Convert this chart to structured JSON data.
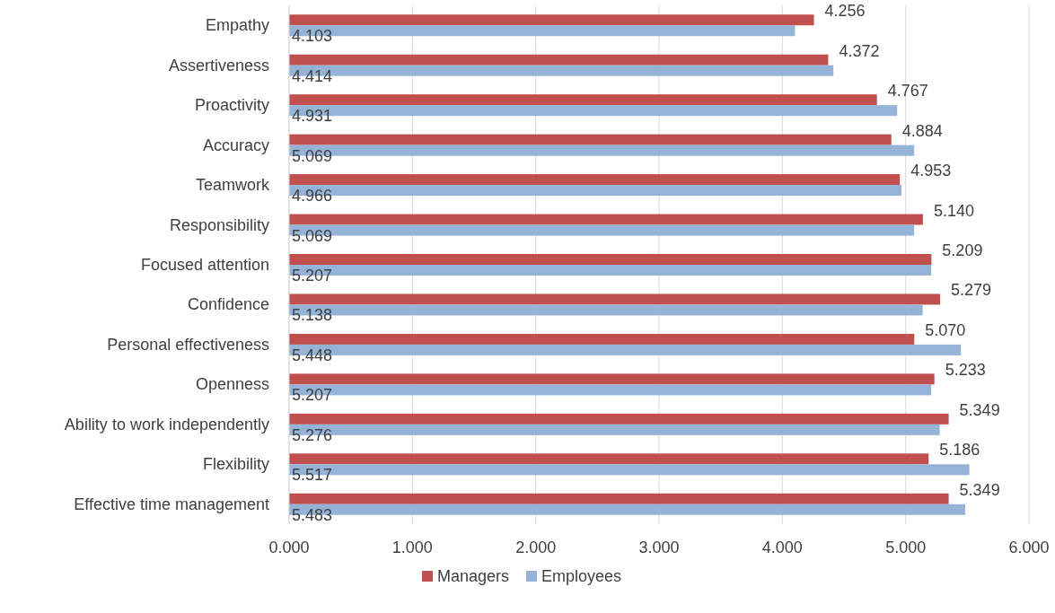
{
  "chart_data": {
    "type": "bar",
    "orientation": "horizontal",
    "categories": [
      "Empathy",
      "Assertiveness",
      "Proactivity",
      "Accuracy",
      "Teamwork",
      "Responsibility",
      "Focused attention",
      "Confidence",
      "Personal effectiveness",
      "Openness",
      "Ability to work independently",
      "Flexibility",
      "Effective time management"
    ],
    "series": [
      {
        "name": "Managers",
        "color": "#c0504d",
        "values": [
          4.256,
          4.372,
          4.767,
          4.884,
          4.953,
          5.14,
          5.209,
          5.279,
          5.07,
          5.233,
          5.349,
          5.186,
          5.349
        ],
        "value_labels": [
          "4.256",
          "4.372",
          "4.767",
          "4.884",
          "4.953",
          "5.140",
          "5.209",
          "5.279",
          "5.070",
          "5.233",
          "5.349",
          "5.186",
          "5.349"
        ]
      },
      {
        "name": "Employees",
        "color": "#95b3d7",
        "values": [
          4.103,
          4.414,
          4.931,
          5.069,
          4.966,
          5.069,
          5.207,
          5.138,
          5.448,
          5.207,
          5.276,
          5.517,
          5.483
        ],
        "value_labels": [
          "4.103",
          "4.414",
          "4.931",
          "5.069",
          "4.966",
          "5.069",
          "5.207",
          "5.138",
          "5.448",
          "5.207",
          "5.276",
          "5.517",
          "5.483"
        ]
      }
    ],
    "xlim": [
      0,
      6
    ],
    "xticks": [
      {
        "value": 0,
        "label": "0.000"
      },
      {
        "value": 1,
        "label": "1.000"
      },
      {
        "value": 2,
        "label": "2.000"
      },
      {
        "value": 3,
        "label": "3.000"
      },
      {
        "value": 4,
        "label": "4.000"
      },
      {
        "value": 5,
        "label": "5.000"
      },
      {
        "value": 6,
        "label": "6.000"
      }
    ],
    "grid": "x",
    "legend": "bottom"
  }
}
